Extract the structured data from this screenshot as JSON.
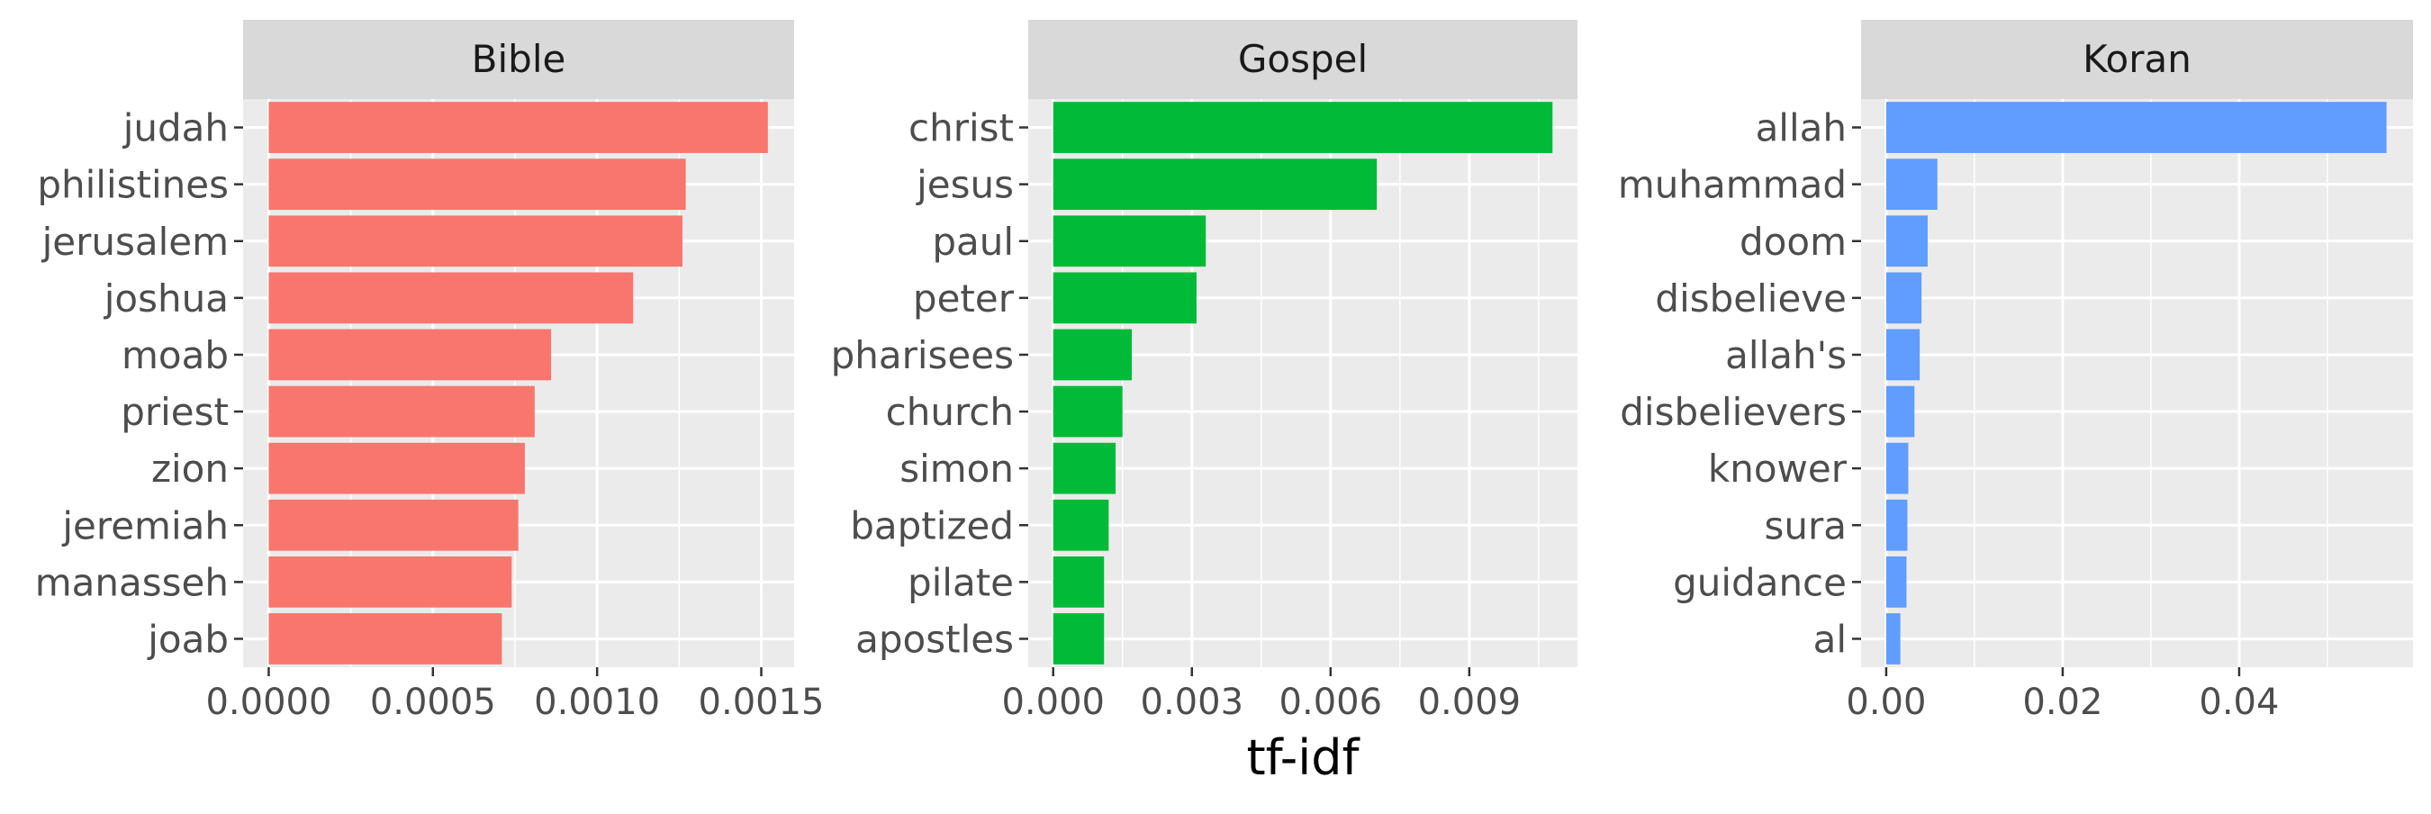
{
  "chart_data": {
    "type": "bar",
    "orientation": "horizontal",
    "xlabel": "tf-idf",
    "ylabel": "",
    "grid": true,
    "legend": "none",
    "panels": [
      {
        "title": "Bible",
        "color": "#F8766D",
        "categories": [
          "judah",
          "philistines",
          "jerusalem",
          "joshua",
          "moab",
          "priest",
          "zion",
          "jeremiah",
          "manasseh",
          "joab"
        ],
        "values": [
          0.00152,
          0.00127,
          0.00126,
          0.00111,
          0.00086,
          0.00081,
          0.00078,
          0.00076,
          0.00074,
          0.00071
        ],
        "xlim": [
          -7.8e-05,
          0.0016
        ],
        "xticks": [
          0,
          0.0005,
          0.001,
          0.0015
        ],
        "xtick_labels": [
          "0.0000",
          "0.0005",
          "0.0010",
          "0.0015"
        ]
      },
      {
        "title": "Gospel",
        "color": "#00BA38",
        "categories": [
          "christ",
          "jesus",
          "paul",
          "peter",
          "pharisees",
          "church",
          "simon",
          "baptized",
          "pilate",
          "apostles"
        ],
        "values": [
          0.0108,
          0.007,
          0.0033,
          0.0031,
          0.0017,
          0.0015,
          0.00135,
          0.0012,
          0.0011,
          0.0011
        ],
        "xlim": [
          -0.00054,
          0.01134
        ],
        "xticks": [
          0,
          0.003,
          0.006,
          0.009
        ],
        "xtick_labels": [
          "0.000",
          "0.003",
          "0.006",
          "0.009"
        ]
      },
      {
        "title": "Koran",
        "color": "#619CFF",
        "categories": [
          "allah",
          "muhammad",
          "doom",
          "disbelieve",
          "allah's",
          "disbelievers",
          "knower",
          "sura",
          "guidance",
          "al"
        ],
        "values": [
          0.0567,
          0.0058,
          0.0047,
          0.004,
          0.0038,
          0.0032,
          0.0025,
          0.0024,
          0.0023,
          0.0016
        ],
        "xlim": [
          -0.00285,
          0.0597
        ],
        "xticks": [
          0,
          0.02,
          0.04
        ],
        "xtick_labels": [
          "0.00",
          "0.02",
          "0.04"
        ]
      }
    ]
  }
}
